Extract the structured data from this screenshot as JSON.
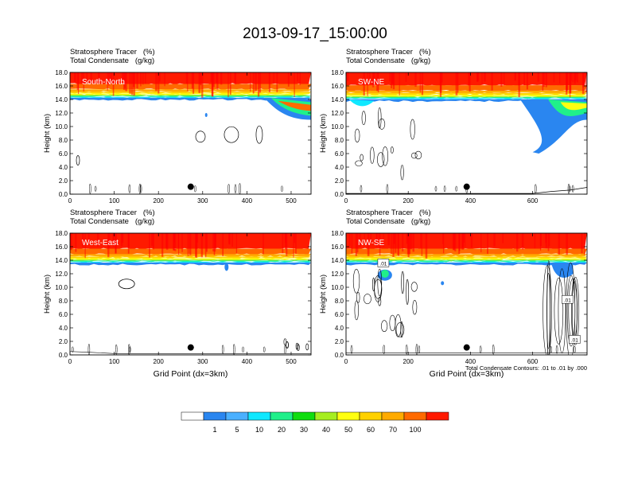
{
  "figure": {
    "title": "2013-09-17_15:00:00",
    "colors": {
      "background": "#ffffff",
      "levels": [
        "#ffffff",
        "#2a86f0",
        "#4ab0ff",
        "#10e8ff",
        "#20f08a",
        "#10dd10",
        "#a6ee20",
        "#ffff10",
        "#ffd100",
        "#ffab00",
        "#ff6a00",
        "#ff1a00"
      ]
    }
  },
  "chart_data": [
    {
      "type": "heatmap",
      "panel": "South-North",
      "title_lines": [
        "Stratosphere Tracer   (%)",
        "Total Condensate   (g/kg)"
      ],
      "xlabel": "",
      "ylabel": "Height (km)",
      "xlim": [
        0,
        545
      ],
      "ylim": [
        0,
        18
      ],
      "xticks": [
        0,
        100,
        200,
        300,
        400,
        500
      ],
      "yticks": [
        "0.0",
        "2.0",
        "4.0",
        "6.0",
        "8.0",
        "10.0",
        "12.0",
        "14.0",
        "16.0",
        "18.0"
      ],
      "tracer_base_km": 14.2,
      "location_dot": {
        "x": 273,
        "y": 1.1
      },
      "contour_labels": []
    },
    {
      "type": "heatmap",
      "panel": "SW-NE",
      "title_lines": [
        "Stratosphere Tracer   (%)",
        "Total Condensate   (g/kg)"
      ],
      "xlabel": "",
      "ylabel": "Height (km)",
      "xlim": [
        0,
        775
      ],
      "ylim": [
        0,
        18
      ],
      "xticks": [
        0,
        200,
        400,
        600
      ],
      "yticks": [
        "0.0",
        "2.0",
        "4.0",
        "6.0",
        "8.0",
        "10.0",
        "12.0",
        "14.0",
        "16.0",
        "18.0"
      ],
      "tracer_base_km": 14.0,
      "location_dot": {
        "x": 388,
        "y": 1.1
      },
      "contour_labels": []
    },
    {
      "type": "heatmap",
      "panel": "West-East",
      "title_lines": [
        "Stratosphere Tracer   (%)",
        "Total Condensate   (g/kg)"
      ],
      "xlabel": "Grid Point (dx=3km)",
      "ylabel": "Height (km)",
      "xlim": [
        0,
        545
      ],
      "ylim": [
        0,
        18
      ],
      "xticks": [
        0,
        100,
        200,
        300,
        400,
        500
      ],
      "yticks": [
        "0.0",
        "2.0",
        "4.0",
        "6.0",
        "8.0",
        "10.0",
        "12.0",
        "14.0",
        "16.0",
        "18.0"
      ],
      "tracer_base_km": 13.6,
      "location_dot": {
        "x": 273,
        "y": 1.1
      },
      "contour_labels": []
    },
    {
      "type": "heatmap",
      "panel": "NW-SE",
      "title_lines": [
        "Stratosphere Tracer   (%)",
        "Total Condensate   (g/kg)"
      ],
      "xlabel": "Grid Point (dx=3km)",
      "ylabel": "Height (km)",
      "xlim": [
        0,
        775
      ],
      "ylim": [
        0,
        18
      ],
      "xticks": [
        0,
        200,
        400,
        600
      ],
      "yticks": [
        "0.0",
        "2.0",
        "4.0",
        "6.0",
        "8.0",
        "10.0",
        "12.0",
        "14.0",
        "16.0",
        "18.0"
      ],
      "tracer_base_km": 13.6,
      "location_dot": {
        "x": 388,
        "y": 1.1
      },
      "contour_labels": [
        ".01",
        ".01",
        ".01"
      ],
      "note": "Total Condensate Contours: .01 to .01 by .000"
    }
  ],
  "colorbar": {
    "levels": [
      "1",
      "5",
      "10",
      "20",
      "30",
      "40",
      "50",
      "60",
      "70",
      "100"
    ]
  }
}
